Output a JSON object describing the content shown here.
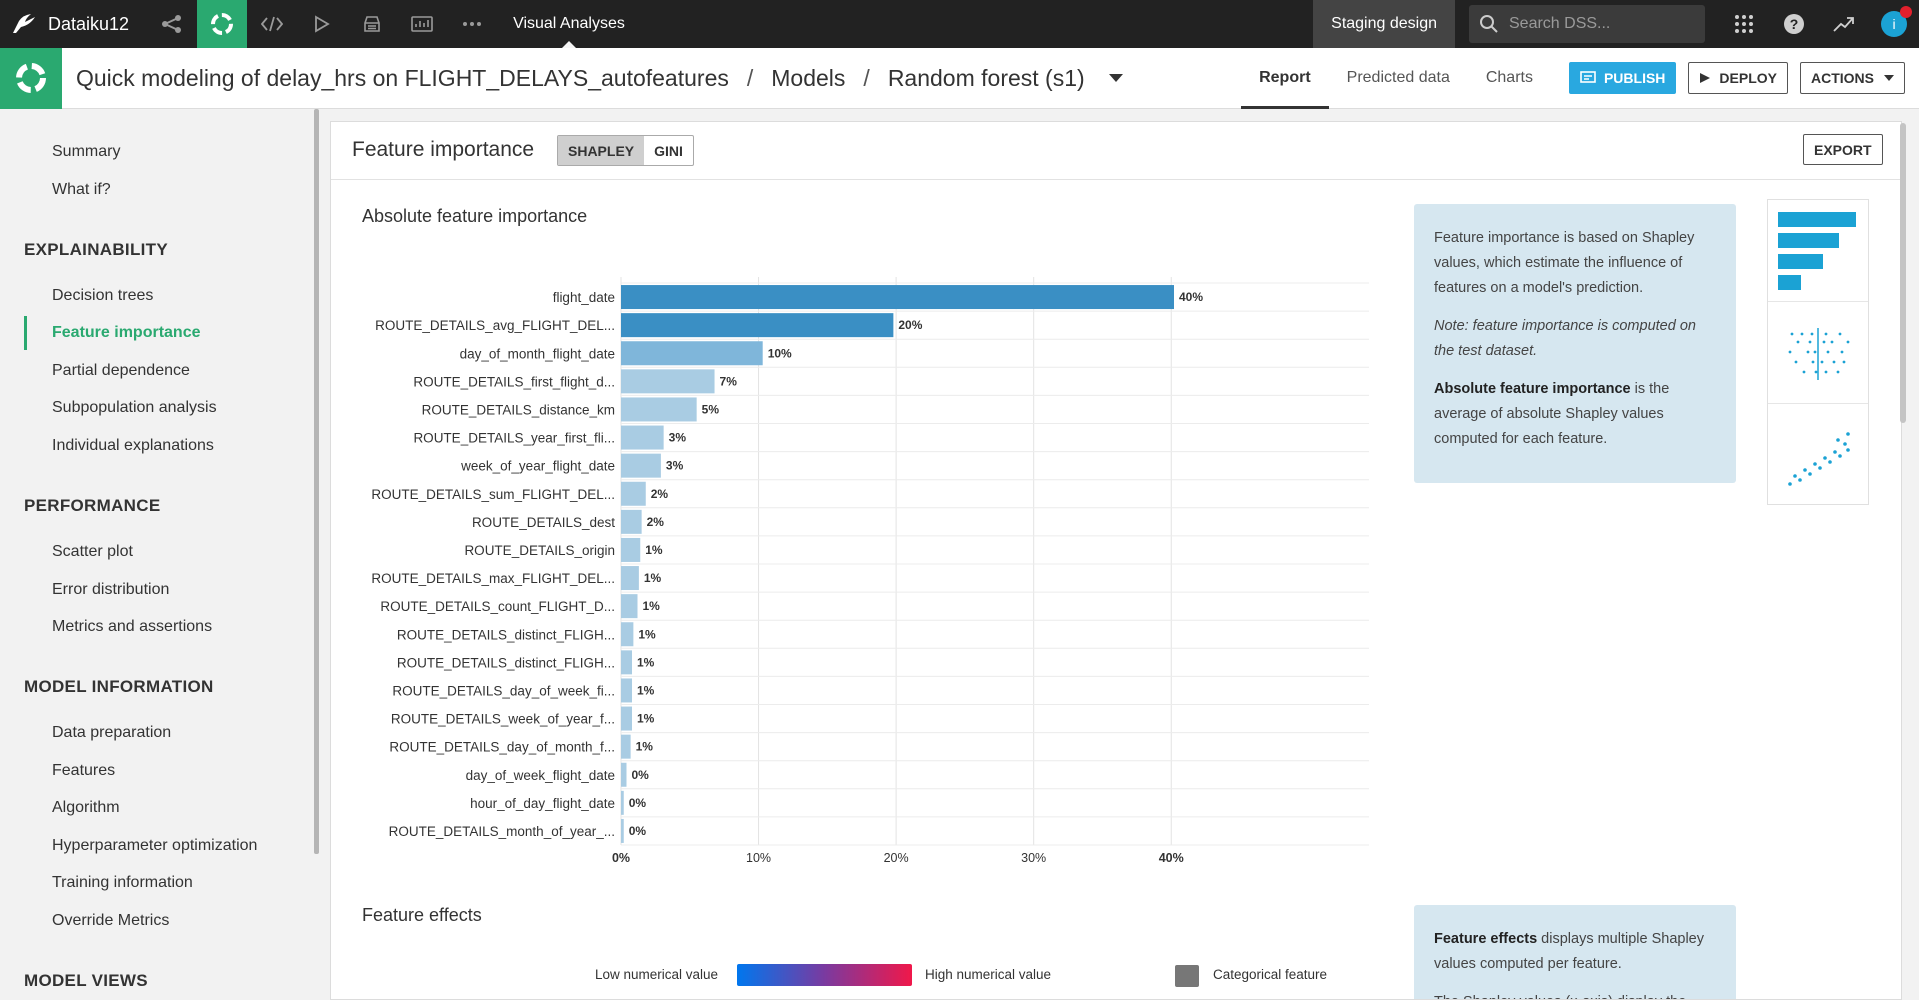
{
  "topbar": {
    "brand": "Dataiku12",
    "section": "Visual Analyses",
    "env": "Staging design",
    "search_placeholder": "Search DSS...",
    "avatar_letter": "i"
  },
  "header": {
    "crumbs": [
      "Quick modeling of delay_hrs on FLIGHT_DELAYS_autofeatures",
      "Models",
      "Random forest (s1)"
    ],
    "separator": "/",
    "tabs": [
      "Report",
      "Predicted data",
      "Charts"
    ],
    "active_tab": "Report",
    "publish": "PUBLISH",
    "deploy": "DEPLOY",
    "actions": "ACTIONS"
  },
  "sidebar": {
    "top_items": [
      "Summary",
      "What if?"
    ],
    "explainability": {
      "heading": "EXPLAINABILITY",
      "items": [
        "Decision trees",
        "Feature importance",
        "Partial dependence",
        "Subpopulation analysis",
        "Individual explanations"
      ]
    },
    "performance": {
      "heading": "PERFORMANCE",
      "items": [
        "Scatter plot",
        "Error distribution",
        "Metrics and assertions"
      ]
    },
    "model_information": {
      "heading": "MODEL INFORMATION",
      "items": [
        "Data preparation",
        "Features",
        "Algorithm",
        "Hyperparameter optimization",
        "Training information",
        "Override Metrics"
      ]
    },
    "model_views": {
      "heading": "MODEL VIEWS"
    },
    "active": "Feature importance"
  },
  "panel": {
    "title": "Feature importance",
    "toggle": [
      "SHAPLEY",
      "GINI"
    ],
    "toggle_active": "SHAPLEY",
    "export": "EXPORT",
    "section1_title": "Absolute feature importance",
    "section2_title": "Feature effects"
  },
  "info1": {
    "p1": "Feature importance is based on Shapley values, which estimate the influence of features on a model's prediction.",
    "p2": "Note: feature importance is computed on the test dataset.",
    "p3_bold": "Absolute feature importance",
    "p3_rest": " is the average of absolute Shapley values computed for each feature."
  },
  "info2": {
    "p1_bold": "Feature effects",
    "p1_rest": " displays multiple Shapley values computed per feature.",
    "p2": "The Shapley values (x-axis) display the"
  },
  "legend": {
    "low": "Low numerical value",
    "high": "High numerical value",
    "categorical": "Categorical feature"
  },
  "colors": {
    "dataiku_green": "#2aa970",
    "bar_dark": "#3a8fc4",
    "bar_light": "#a9cce3",
    "publish_blue": "#29a8e0",
    "info_bg": "#d6e7f0"
  },
  "chart_data": {
    "type": "bar",
    "orientation": "horizontal",
    "title": "Absolute feature importance",
    "categories": [
      "flight_date",
      "ROUTE_DETAILS_avg_FLIGHT_DEL...",
      "day_of_month_flight_date",
      "ROUTE_DETAILS_first_flight_d...",
      "ROUTE_DETAILS_distance_km",
      "ROUTE_DETAILS_year_first_fli...",
      "week_of_year_flight_date",
      "ROUTE_DETAILS_sum_FLIGHT_DEL...",
      "ROUTE_DETAILS_dest",
      "ROUTE_DETAILS_origin",
      "ROUTE_DETAILS_max_FLIGHT_DEL...",
      "ROUTE_DETAILS_count_FLIGHT_D...",
      "ROUTE_DETAILS_distinct_FLIGH...",
      "ROUTE_DETAILS_distinct_FLIGH...",
      "ROUTE_DETAILS_day_of_week_fi...",
      "ROUTE_DETAILS_week_of_year_f...",
      "ROUTE_DETAILS_day_of_month_f...",
      "day_of_week_flight_date",
      "hour_of_day_flight_date",
      "ROUTE_DETAILS_month_of_year_..."
    ],
    "values": [
      40.2,
      19.8,
      10.3,
      6.8,
      5.5,
      3.1,
      2.9,
      1.8,
      1.5,
      1.4,
      1.3,
      1.2,
      0.9,
      0.8,
      0.8,
      0.8,
      0.7,
      0.4,
      0.2,
      0.2
    ],
    "value_labels": [
      "40%",
      "20%",
      "10%",
      "7%",
      "5%",
      "3%",
      "3%",
      "2%",
      "2%",
      "1%",
      "1%",
      "1%",
      "1%",
      "1%",
      "1%",
      "1%",
      "1%",
      "0%",
      "0%",
      "0%"
    ],
    "xticks": [
      0,
      10,
      20,
      30,
      40
    ],
    "xtick_labels": [
      "0%",
      "10%",
      "20%",
      "30%",
      "40%"
    ],
    "xlim": [
      0,
      40.2
    ],
    "grid": true
  }
}
